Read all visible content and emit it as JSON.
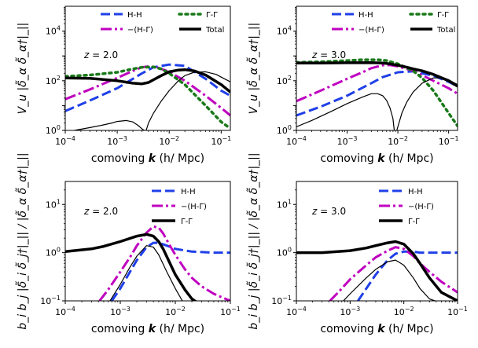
{
  "chart_data": [
    {
      "type": "line",
      "panel": "top-left",
      "z_label": "z = 2.0",
      "xlabel": "comoving k (h/ Mpc)",
      "ylabel": "V_u |δ̃_α δ̃_α†|_||",
      "xscale": "log",
      "yscale": "log",
      "xlim": [
        0.0001,
        0.15
      ],
      "ylim": [
        1,
        100000
      ],
      "xticks": [
        "10^-4",
        "10^-3",
        "10^-2",
        "10^-1"
      ],
      "yticks": [
        "10^0",
        "10^2",
        "10^4"
      ],
      "legend_placement": "top",
      "legend": [
        "H-H",
        "−(H-Γ)",
        "Γ-Γ",
        "Total"
      ],
      "series": [
        {
          "name": "H-H",
          "color": "#1f3fe8",
          "style": "dashed",
          "width": 3,
          "x": [
            0.0001,
            0.0003,
            0.001,
            0.003,
            0.005,
            0.01,
            0.02,
            0.05,
            0.1,
            0.15
          ],
          "y": [
            6,
            16,
            50,
            200,
            350,
            450,
            400,
            120,
            40,
            25
          ]
        },
        {
          "name": "−(H-Γ)",
          "color": "#c000c0",
          "style": "dashdot",
          "width": 3,
          "x": [
            0.0001,
            0.0003,
            0.001,
            0.002,
            0.003,
            0.004,
            0.006,
            0.01,
            0.02,
            0.05,
            0.1,
            0.15
          ],
          "y": [
            18,
            45,
            130,
            250,
            350,
            380,
            340,
            230,
            100,
            25,
            8,
            4
          ]
        },
        {
          "name": "Γ-Γ",
          "color": "#1a7a1a",
          "style": "dotted",
          "width": 3.5,
          "x": [
            0.0001,
            0.0003,
            0.001,
            0.002,
            0.003,
            0.005,
            0.007,
            0.01,
            0.02,
            0.05,
            0.1,
            0.15
          ],
          "y": [
            150,
            170,
            220,
            300,
            350,
            360,
            300,
            200,
            70,
            10,
            2.2,
            1.2
          ]
        },
        {
          "name": "Total",
          "color": "#000000",
          "style": "solid",
          "width": 3.5,
          "x": [
            0.0001,
            0.0003,
            0.001,
            0.002,
            0.003,
            0.004,
            0.005,
            0.007,
            0.01,
            0.015,
            0.02,
            0.03,
            0.05,
            0.1,
            0.15
          ],
          "y": [
            130,
            125,
            100,
            80,
            75,
            85,
            110,
            160,
            230,
            270,
            280,
            250,
            170,
            70,
            35
          ]
        },
        {
          "name": "thin",
          "color": "#000000",
          "style": "solid",
          "width": 1.2,
          "x": [
            0.00015,
            0.0003,
            0.0005,
            0.0008,
            0.001,
            0.0015,
            0.002,
            0.0025,
            0.003,
            0.0033
          ],
          "y": [
            1,
            1.3,
            1.6,
            2.0,
            2.3,
            2.5,
            2.2,
            1.6,
            1.15,
            1
          ]
        },
        {
          "name": "thin2",
          "color": "#000000",
          "style": "solid",
          "width": 1.2,
          "x": [
            0.0036,
            0.004,
            0.005,
            0.007,
            0.01,
            0.015,
            0.02,
            0.03,
            0.05,
            0.08,
            0.1,
            0.15
          ],
          "y": [
            1,
            2,
            5,
            15,
            40,
            100,
            160,
            220,
            230,
            180,
            140,
            90
          ]
        }
      ]
    },
    {
      "type": "line",
      "panel": "top-right",
      "z_label": "z = 3.0",
      "xlabel": "comoving k (h/ Mpc)",
      "ylabel": "V_u |δ̃_α δ̃_α†|_||",
      "xscale": "log",
      "yscale": "log",
      "xlim": [
        0.0001,
        0.15
      ],
      "ylim": [
        1,
        100000
      ],
      "xticks": [
        "10^-4",
        "10^-3",
        "10^-2",
        "10^-1"
      ],
      "yticks": [
        "10^0",
        "10^2",
        "10^4"
      ],
      "legend_placement": "top",
      "legend": [
        "H-H",
        "−(H-Γ)",
        "Γ-Γ",
        "Total"
      ],
      "series": [
        {
          "name": "H-H",
          "color": "#1f3fe8",
          "style": "dashed",
          "width": 3,
          "x": [
            0.0001,
            0.0003,
            0.001,
            0.003,
            0.005,
            0.01,
            0.02,
            0.05,
            0.1,
            0.15
          ],
          "y": [
            4,
            9,
            25,
            80,
            140,
            220,
            240,
            160,
            90,
            60
          ]
        },
        {
          "name": "−(H-Γ)",
          "color": "#c000c0",
          "style": "dashdot",
          "width": 3,
          "x": [
            0.0001,
            0.0003,
            0.001,
            0.002,
            0.003,
            0.005,
            0.007,
            0.01,
            0.02,
            0.05,
            0.1,
            0.15
          ],
          "y": [
            15,
            40,
            120,
            220,
            320,
            420,
            430,
            380,
            250,
            100,
            50,
            30
          ]
        },
        {
          "name": "Γ-Γ",
          "color": "#1a7a1a",
          "style": "dotted",
          "width": 3.5,
          "x": [
            0.0001,
            0.0003,
            0.001,
            0.002,
            0.004,
            0.006,
            0.01,
            0.02,
            0.03,
            0.05,
            0.1,
            0.15
          ],
          "y": [
            550,
            580,
            650,
            700,
            700,
            650,
            480,
            250,
            130,
            40,
            5,
            1.5
          ]
        },
        {
          "name": "Total",
          "color": "#000000",
          "style": "solid",
          "width": 3.5,
          "x": [
            0.0001,
            0.0003,
            0.001,
            0.003,
            0.005,
            0.007,
            0.01,
            0.015,
            0.02,
            0.03,
            0.05,
            0.1,
            0.15
          ],
          "y": [
            520,
            520,
            530,
            540,
            520,
            480,
            420,
            350,
            300,
            250,
            180,
            100,
            60
          ]
        },
        {
          "name": "thin",
          "color": "#000000",
          "style": "solid",
          "width": 1.2,
          "x": [
            0.0001,
            0.0002,
            0.0005,
            0.001,
            0.002,
            0.003,
            0.004,
            0.005,
            0.006,
            0.007,
            0.008,
            0.0085
          ],
          "y": [
            1.4,
            2.5,
            6,
            12,
            22,
            30,
            30,
            25,
            16,
            8,
            3,
            1
          ]
        },
        {
          "name": "thin2",
          "color": "#000000",
          "style": "solid",
          "width": 1.2,
          "x": [
            0.0095,
            0.0105,
            0.012,
            0.015,
            0.02,
            0.03,
            0.05,
            0.08,
            0.1,
            0.15
          ],
          "y": [
            1,
            2,
            5,
            14,
            35,
            80,
            130,
            130,
            110,
            70
          ]
        }
      ]
    },
    {
      "type": "line",
      "panel": "bottom-left",
      "z_label": "z = 2.0",
      "xlabel": "comoving k (h/ Mpc)",
      "ylabel": "b_i b_j |δ̃_i δ̃_j†|_|| / |δ̃_α δ̃_α†|_||",
      "xscale": "log",
      "yscale": "log",
      "xlim": [
        0.0001,
        0.1
      ],
      "ylim": [
        0.1,
        30
      ],
      "xticks": [
        "10^-4",
        "10^-3",
        "10^-2",
        "10^-1"
      ],
      "yticks": [
        "10^-1",
        "10^0",
        "10^1"
      ],
      "legend_placement": "top-right",
      "legend": [
        "H-H",
        "−(H-Γ)",
        "Γ-Γ"
      ],
      "series": [
        {
          "name": "H-H",
          "color": "#1f3fe8",
          "style": "dashed",
          "width": 3,
          "x": [
            0.0007,
            0.001,
            0.0015,
            0.002,
            0.003,
            0.004,
            0.005,
            0.007,
            0.01,
            0.02,
            0.05,
            0.1
          ],
          "y": [
            0.1,
            0.18,
            0.4,
            0.7,
            1.3,
            1.6,
            1.6,
            1.4,
            1.2,
            1.05,
            1.0,
            1.0
          ]
        },
        {
          "name": "−(H-Γ)",
          "color": "#c000c0",
          "style": "dashdot",
          "width": 3,
          "x": [
            0.00042,
            0.0006,
            0.001,
            0.0015,
            0.002,
            0.003,
            0.004,
            0.005,
            0.006,
            0.008,
            0.01,
            0.015,
            0.02,
            0.03,
            0.05,
            0.1
          ],
          "y": [
            0.1,
            0.17,
            0.4,
            0.8,
            1.4,
            2.6,
            3.5,
            3.3,
            2.5,
            1.4,
            0.9,
            0.45,
            0.3,
            0.2,
            0.14,
            0.1
          ]
        },
        {
          "name": "Γ-Γ",
          "color": "#000000",
          "style": "solid",
          "width": 3.5,
          "x": [
            0.0001,
            0.0003,
            0.0005,
            0.001,
            0.002,
            0.003,
            0.004,
            0.005,
            0.006,
            0.008,
            0.01,
            0.015,
            0.02,
            0.03
          ],
          "y": [
            1.05,
            1.2,
            1.35,
            1.7,
            2.2,
            2.4,
            2.2,
            1.7,
            1.2,
            0.6,
            0.35,
            0.17,
            0.11,
            0.08
          ]
        },
        {
          "name": "thin",
          "color": "#000000",
          "style": "solid",
          "width": 1.2,
          "x": [
            0.00065,
            0.001,
            0.0015,
            0.002,
            0.003,
            0.004,
            0.005,
            0.007,
            0.01,
            0.015
          ],
          "y": [
            0.1,
            0.22,
            0.5,
            0.85,
            1.4,
            1.3,
            0.9,
            0.4,
            0.18,
            0.08
          ]
        }
      ]
    },
    {
      "type": "line",
      "panel": "bottom-right",
      "z_label": "z = 3.0",
      "xlabel": "comoving k (h/ Mpc)",
      "ylabel": "b_i b_j |δ̃_i δ̃_j†|_|| / |δ̃_α δ̃_α†|_||",
      "xscale": "log",
      "yscale": "log",
      "xlim": [
        0.0001,
        0.1
      ],
      "ylim": [
        0.1,
        30
      ],
      "xticks": [
        "10^-4",
        "10^-3",
        "10^-2",
        "10^-1"
      ],
      "yticks": [
        "10^-1",
        "10^0",
        "10^1"
      ],
      "legend_placement": "top-right",
      "legend": [
        "H-H",
        "−(H-Γ)",
        "Γ-Γ"
      ],
      "series": [
        {
          "name": "H-H",
          "color": "#1f3fe8",
          "style": "dashed",
          "width": 3,
          "x": [
            0.0014,
            0.002,
            0.003,
            0.005,
            0.007,
            0.01,
            0.015,
            0.02,
            0.03,
            0.05,
            0.1
          ],
          "y": [
            0.1,
            0.18,
            0.35,
            0.7,
            0.95,
            1.05,
            1.05,
            1.0,
            1.0,
            1.0,
            1.0
          ]
        },
        {
          "name": "−(H-Γ)",
          "color": "#c000c0",
          "style": "dashdot",
          "width": 3,
          "x": [
            0.00042,
            0.0006,
            0.001,
            0.002,
            0.003,
            0.005,
            0.007,
            0.01,
            0.015,
            0.02,
            0.03,
            0.05,
            0.1
          ],
          "y": [
            0.1,
            0.15,
            0.28,
            0.55,
            0.8,
            1.1,
            1.3,
            1.2,
            0.85,
            0.6,
            0.4,
            0.25,
            0.15
          ]
        },
        {
          "name": "Γ-Γ",
          "color": "#000000",
          "style": "solid",
          "width": 3.5,
          "x": [
            0.0001,
            0.0003,
            0.001,
            0.002,
            0.003,
            0.005,
            0.007,
            0.01,
            0.015,
            0.02,
            0.03,
            0.05,
            0.1
          ],
          "y": [
            1.0,
            1.0,
            1.1,
            1.25,
            1.4,
            1.6,
            1.7,
            1.5,
            0.95,
            0.6,
            0.3,
            0.15,
            0.1
          ]
        },
        {
          "name": "thin",
          "color": "#000000",
          "style": "solid",
          "width": 1.2,
          "x": [
            0.00075,
            0.001,
            0.002,
            0.003,
            0.005,
            0.007,
            0.01,
            0.015,
            0.02,
            0.03,
            0.05
          ],
          "y": [
            0.1,
            0.14,
            0.3,
            0.45,
            0.65,
            0.7,
            0.55,
            0.3,
            0.18,
            0.11,
            0.09
          ]
        }
      ]
    }
  ]
}
